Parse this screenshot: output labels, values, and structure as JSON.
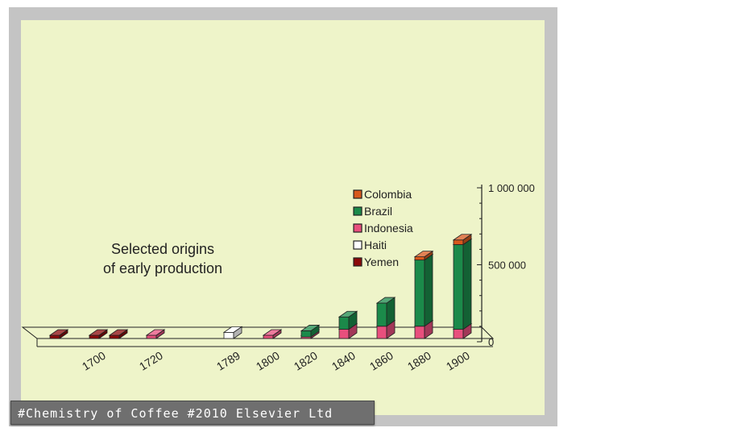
{
  "credit": "#Chemistry of Coffee #2010 Elsevier Ltd",
  "chart_data": {
    "type": "bar",
    "stacked": true,
    "three_d": true,
    "annotation": [
      "Selected origins",
      "of early production"
    ],
    "categories": [
      "",
      "1700",
      "",
      "1720",
      "1789",
      "1800",
      "1820",
      "1840",
      "1860",
      "1880",
      "1900"
    ],
    "category_positions": [
      1690,
      1700,
      1710,
      1720,
      1789,
      1800,
      1820,
      1840,
      1860,
      1880,
      1900
    ],
    "ylim": [
      0,
      1000000
    ],
    "yticks": [
      {
        "value": 0,
        "label": "0"
      },
      {
        "value": 500000,
        "label": "500 000"
      },
      {
        "value": 1000000,
        "label": "1 000 000"
      }
    ],
    "series": [
      {
        "name": "Yemen",
        "color": "#8b0a0a",
        "values": [
          8000,
          8000,
          8000,
          0,
          0,
          0,
          0,
          0,
          0,
          0,
          0
        ]
      },
      {
        "name": "Haiti",
        "color": "#ffffff",
        "values": [
          0,
          0,
          0,
          0,
          40000,
          0,
          0,
          0,
          0,
          0,
          0
        ]
      },
      {
        "name": "Indonesia",
        "color": "#e84f7d",
        "values": [
          0,
          0,
          0,
          8000,
          0,
          8000,
          10000,
          60000,
          80000,
          80000,
          60000
        ]
      },
      {
        "name": "Brazil",
        "color": "#1b8a4a",
        "values": [
          0,
          0,
          0,
          0,
          0,
          0,
          40000,
          80000,
          150000,
          430000,
          550000
        ]
      },
      {
        "name": "Colombia",
        "color": "#d8581c",
        "values": [
          0,
          0,
          0,
          0,
          0,
          0,
          0,
          0,
          0,
          20000,
          30000
        ]
      }
    ],
    "legend_order": [
      "Colombia",
      "Brazil",
      "Indonesia",
      "Haiti",
      "Yemen"
    ],
    "legend_position": "top-right"
  }
}
